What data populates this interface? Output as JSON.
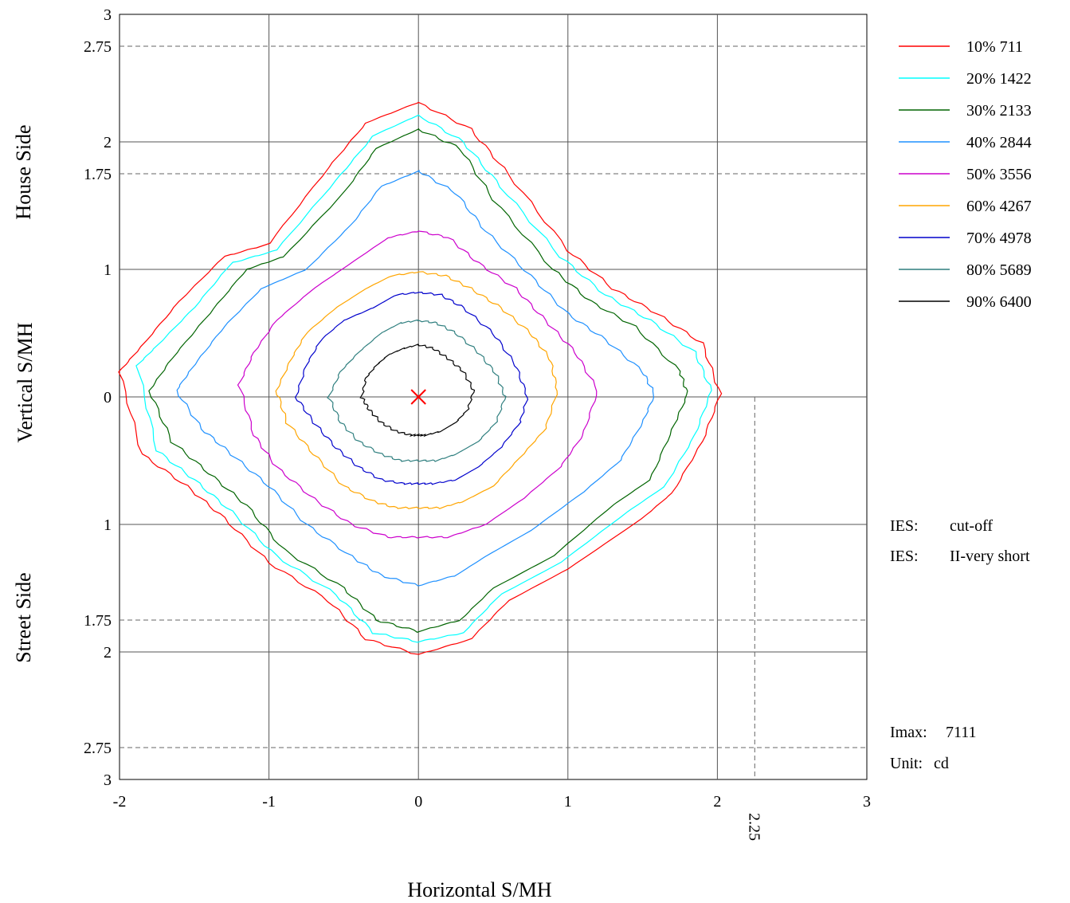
{
  "chart_data": {
    "type": "line",
    "title": "",
    "xlabel": "Horizontal  S/MH",
    "ylabel": "Vertical  S/MH",
    "side_labels": {
      "top": "House Side",
      "bottom": "Street Side"
    },
    "xlim": [
      -2,
      3
    ],
    "ylim": [
      -3,
      3
    ],
    "x_ticks": [
      {
        "value": -2,
        "label": "-2"
      },
      {
        "value": -1,
        "label": "-1"
      },
      {
        "value": 0,
        "label": "0"
      },
      {
        "value": 1,
        "label": "1"
      },
      {
        "value": 2,
        "label": "2"
      },
      {
        "value": 3,
        "label": "3"
      }
    ],
    "y_ticks": [
      {
        "value": 3,
        "label": "3"
      },
      {
        "value": 2.75,
        "label": "2.75"
      },
      {
        "value": 2,
        "label": "2"
      },
      {
        "value": 1.75,
        "label": "1.75"
      },
      {
        "value": 1,
        "label": "1"
      },
      {
        "value": 0,
        "label": "0"
      },
      {
        "value": -1,
        "label": "1"
      },
      {
        "value": -1.75,
        "label": "1.75"
      },
      {
        "value": -2,
        "label": "2"
      },
      {
        "value": -2.75,
        "label": "2.75"
      },
      {
        "value": -3,
        "label": "3"
      }
    ],
    "grid": true,
    "grid_x": [
      -1,
      0,
      1,
      2
    ],
    "grid_y": [
      2,
      1,
      0,
      -1,
      -2
    ],
    "dashed_y": [
      2.75,
      1.75,
      -1.75,
      -2.75
    ],
    "dashed_marker": {
      "x": 2.25,
      "from_y": 0,
      "to_y": -3,
      "label": "2.25"
    },
    "center_marker": {
      "x": 0,
      "y": 0,
      "color": "#ff0000"
    },
    "legend_position": "top-right",
    "series": [
      {
        "name": "10%  711",
        "color": "#ff0000",
        "up": 2.31,
        "down": 2.02,
        "left": 2.0,
        "right": 2.02,
        "x": [
          0.0,
          0.35,
          0.6,
          1.0,
          1.3,
          1.6,
          1.9,
          2.02,
          1.9,
          1.7,
          1.5,
          1.0,
          0.6,
          0.35,
          0.0,
          -0.35,
          -0.6,
          -1.0,
          -1.3,
          -1.55,
          -1.85,
          -2.0,
          -1.85,
          -1.6,
          -1.3,
          -1.0,
          -0.6,
          -0.35,
          0.0
        ],
        "y": [
          2.31,
          2.1,
          1.75,
          1.15,
          0.85,
          0.65,
          0.42,
          0.02,
          -0.35,
          -0.75,
          -0.95,
          -1.35,
          -1.6,
          -1.9,
          -2.02,
          -1.9,
          -1.6,
          -1.3,
          -0.95,
          -0.7,
          -0.45,
          0.2,
          0.4,
          0.75,
          1.1,
          1.2,
          1.8,
          2.15,
          2.31
        ]
      },
      {
        "name": "20%  1422",
        "color": "#00ffff",
        "up": 2.21,
        "down": 1.92,
        "left": 1.88,
        "right": 1.96,
        "x": [
          0.0,
          0.3,
          0.55,
          0.95,
          1.25,
          1.55,
          1.85,
          1.96,
          1.85,
          1.65,
          1.4,
          0.95,
          0.55,
          0.3,
          0.0,
          -0.3,
          -0.55,
          -0.95,
          -1.25,
          -1.5,
          -1.75,
          -1.88,
          -1.75,
          -1.5,
          -1.25,
          -0.95,
          -0.55,
          -0.3,
          0.0
        ],
        "y": [
          2.21,
          2.0,
          1.65,
          1.1,
          0.8,
          0.6,
          0.35,
          0.05,
          -0.3,
          -0.7,
          -0.9,
          -1.3,
          -1.55,
          -1.85,
          -1.92,
          -1.85,
          -1.55,
          -1.25,
          -0.9,
          -0.65,
          -0.42,
          0.25,
          0.4,
          0.7,
          1.05,
          1.15,
          1.7,
          2.05,
          2.21
        ]
      },
      {
        "name": "30%  2133",
        "color": "#006400",
        "up": 2.1,
        "down": 1.84,
        "left": 1.8,
        "right": 1.8,
        "x": [
          0.0,
          0.28,
          0.5,
          0.9,
          1.15,
          1.45,
          1.75,
          1.8,
          1.7,
          1.55,
          1.3,
          0.9,
          0.5,
          0.28,
          0.0,
          -0.28,
          -0.5,
          -0.9,
          -1.15,
          -1.4,
          -1.65,
          -1.8,
          -1.65,
          -1.4,
          -1.15,
          -0.9,
          -0.5,
          -0.28,
          0.0
        ],
        "y": [
          2.1,
          1.95,
          1.55,
          1.0,
          0.75,
          0.55,
          0.2,
          0.02,
          -0.25,
          -0.65,
          -0.85,
          -1.25,
          -1.5,
          -1.75,
          -1.84,
          -1.75,
          -1.5,
          -1.2,
          -0.85,
          -0.6,
          -0.35,
          0.05,
          0.3,
          0.65,
          1.0,
          1.1,
          1.6,
          1.95,
          2.1
        ]
      },
      {
        "name": "40%  2844",
        "color": "#1e90ff",
        "up": 1.77,
        "down": 1.48,
        "left": 1.62,
        "right": 1.58,
        "x": [
          0.0,
          0.25,
          0.45,
          0.75,
          1.0,
          1.25,
          1.5,
          1.58,
          1.5,
          1.35,
          1.1,
          0.75,
          0.45,
          0.25,
          0.0,
          -0.25,
          -0.45,
          -0.75,
          -1.0,
          -1.25,
          -1.45,
          -1.62,
          -1.5,
          -1.3,
          -1.05,
          -0.75,
          -0.45,
          -0.25,
          0.0
        ],
        "y": [
          1.77,
          1.6,
          1.3,
          0.95,
          0.65,
          0.45,
          0.2,
          0.02,
          -0.2,
          -0.5,
          -0.75,
          -1.05,
          -1.25,
          -1.4,
          -1.48,
          -1.4,
          -1.25,
          -1.0,
          -0.7,
          -0.45,
          -0.25,
          0.05,
          0.25,
          0.55,
          0.85,
          1.0,
          1.35,
          1.65,
          1.77
        ]
      },
      {
        "name": "50%  3556",
        "color": "#cc00cc",
        "up": 1.3,
        "down": 1.1,
        "left": 1.2,
        "right": 1.2,
        "x": [
          0.0,
          0.2,
          0.4,
          0.65,
          0.85,
          1.05,
          1.2,
          1.1,
          0.95,
          0.7,
          0.45,
          0.2,
          0.0,
          -0.2,
          -0.45,
          -0.7,
          -0.95,
          -1.1,
          -1.2,
          -1.1,
          -0.95,
          -0.7,
          -0.45,
          -0.2,
          0.0
        ],
        "y": [
          1.3,
          1.25,
          1.05,
          0.85,
          0.6,
          0.35,
          0.05,
          -0.3,
          -0.55,
          -0.8,
          -1.0,
          -1.1,
          -1.1,
          -1.1,
          -1.0,
          -0.8,
          -0.55,
          -0.3,
          0.1,
          0.35,
          0.6,
          0.85,
          1.05,
          1.25,
          1.3
        ]
      },
      {
        "name": "60%  4267",
        "color": "#ffa500",
        "up": 0.98,
        "down": 0.87,
        "left": 0.95,
        "right": 0.93,
        "x": [
          0.0,
          0.18,
          0.35,
          0.55,
          0.75,
          0.88,
          0.93,
          0.85,
          0.7,
          0.5,
          0.3,
          0.15,
          0.0,
          -0.15,
          -0.3,
          -0.5,
          -0.7,
          -0.88,
          -0.95,
          -0.85,
          -0.75,
          -0.55,
          -0.35,
          -0.18,
          0.0
        ],
        "y": [
          0.98,
          0.95,
          0.85,
          0.7,
          0.5,
          0.3,
          0.05,
          -0.25,
          -0.45,
          -0.7,
          -0.82,
          -0.87,
          -0.87,
          -0.87,
          -0.82,
          -0.7,
          -0.45,
          -0.2,
          0.05,
          0.3,
          0.5,
          0.7,
          0.85,
          0.95,
          0.98
        ]
      },
      {
        "name": "70%  4978",
        "color": "#0000cc",
        "up": 0.82,
        "down": 0.68,
        "left": 0.82,
        "right": 0.73,
        "x": [
          0.0,
          0.15,
          0.3,
          0.5,
          0.65,
          0.73,
          0.68,
          0.55,
          0.4,
          0.25,
          0.1,
          0.0,
          -0.1,
          -0.25,
          -0.4,
          -0.55,
          -0.7,
          -0.82,
          -0.75,
          -0.65,
          -0.5,
          -0.3,
          -0.15,
          0.0
        ],
        "y": [
          0.82,
          0.8,
          0.7,
          0.5,
          0.25,
          0.0,
          -0.2,
          -0.4,
          -0.55,
          -0.65,
          -0.68,
          -0.68,
          -0.68,
          -0.65,
          -0.55,
          -0.4,
          -0.2,
          0.0,
          0.25,
          0.45,
          0.6,
          0.7,
          0.8,
          0.82
        ]
      },
      {
        "name": "80%  5689",
        "color": "#2f7f7f",
        "up": 0.6,
        "down": 0.5,
        "left": 0.6,
        "right": 0.58,
        "x": [
          0.0,
          0.12,
          0.25,
          0.4,
          0.52,
          0.58,
          0.52,
          0.4,
          0.25,
          0.12,
          0.0,
          -0.12,
          -0.25,
          -0.4,
          -0.52,
          -0.6,
          -0.52,
          -0.4,
          -0.25,
          -0.12,
          0.0
        ],
        "y": [
          0.6,
          0.58,
          0.5,
          0.35,
          0.18,
          0.0,
          -0.2,
          -0.35,
          -0.45,
          -0.5,
          -0.5,
          -0.5,
          -0.45,
          -0.35,
          -0.2,
          0.0,
          0.2,
          0.35,
          0.5,
          0.58,
          0.6
        ]
      },
      {
        "name": "90%  6400",
        "color": "#000000",
        "up": 0.41,
        "down": 0.3,
        "left": 0.38,
        "right": 0.37,
        "x": [
          0.0,
          0.1,
          0.2,
          0.3,
          0.37,
          0.33,
          0.25,
          0.15,
          0.05,
          0.0,
          -0.05,
          -0.15,
          -0.25,
          -0.33,
          -0.38,
          -0.35,
          -0.28,
          -0.2,
          -0.1,
          0.0
        ],
        "y": [
          0.41,
          0.38,
          0.3,
          0.2,
          0.05,
          -0.1,
          -0.2,
          -0.27,
          -0.3,
          -0.3,
          -0.3,
          -0.27,
          -0.2,
          -0.1,
          0.0,
          0.15,
          0.25,
          0.33,
          0.38,
          0.41
        ]
      }
    ],
    "info": {
      "ies_lines": [
        {
          "label": "IES:",
          "value": "cut-off"
        },
        {
          "label": "IES:",
          "value": "II-very short"
        }
      ],
      "imax_label": "Imax:",
      "imax_value": "7111",
      "unit_label": "Unit:",
      "unit_value": "cd"
    }
  }
}
